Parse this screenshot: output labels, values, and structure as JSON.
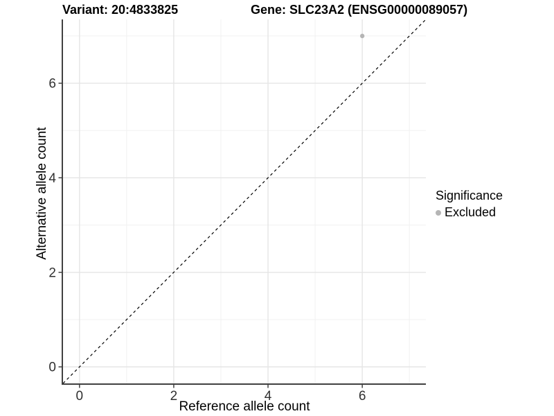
{
  "titles": {
    "variant": "Variant: 20:4833825",
    "gene": "Gene: SLC23A2 (ENSG00000089057)"
  },
  "legend": {
    "title": "Significance",
    "items": [
      {
        "label": "Excluded",
        "color": "#b5b5b5"
      }
    ]
  },
  "colors": {
    "point": "#b5b5b5",
    "grid_major": "#e5e5e5",
    "grid_minor": "#f1f1f1",
    "axis_line": "#404040",
    "tick_mark": "#333333",
    "tick_label": "#303030",
    "reference_line": "#000000"
  },
  "chart_data": {
    "type": "scatter",
    "title": "",
    "xlabel": "Reference allele count",
    "ylabel": "Alternative allele count",
    "xlim": [
      -0.35,
      7.35
    ],
    "ylim": [
      -0.35,
      7.35
    ],
    "x_major_ticks": [
      0,
      2,
      4,
      6
    ],
    "x_minor_ticks": [
      1,
      3,
      5,
      7
    ],
    "y_major_ticks": [
      0,
      2,
      4,
      6
    ],
    "y_minor_ticks": [
      1,
      3,
      5,
      7
    ],
    "grid": true,
    "legend_position": "right",
    "reference_line": {
      "equation": "y = x",
      "style": "dashed",
      "from": {
        "x": -0.35,
        "y": -0.35
      },
      "to": {
        "x": 7.35,
        "y": 7.35
      }
    },
    "series": [
      {
        "name": "Excluded",
        "color": "#b5b5b5",
        "points": [
          {
            "x": 6,
            "y": 7
          }
        ]
      }
    ]
  }
}
